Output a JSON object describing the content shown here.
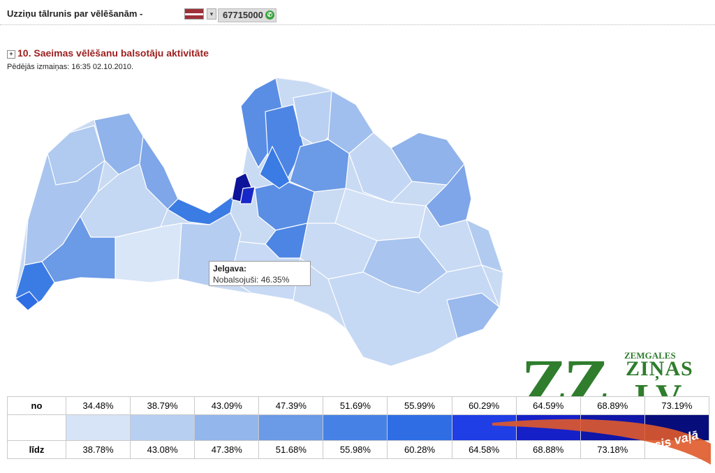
{
  "header": {
    "title": "Uzziņu tālrunis par vēlēšanām -",
    "flag_dropdown": "▾",
    "phone": "67715000",
    "phone_icon": "phone-icon"
  },
  "section": {
    "expand_icon": "+",
    "title": "10. Saeimas vēlēšanu balsotāju aktivitāte",
    "updated": "Pēdējās izmaiņas: 16:35 02.10.2010."
  },
  "tooltip": {
    "title": "Jelgava:",
    "value": "Nobalsojuši: 46.35%"
  },
  "logo": {
    "zz": "ZZ",
    "zemgales": "ZEMGALES",
    "zinas": "ZIŅAS",
    "lv": ".LV",
    "acis": "acis vaļā"
  },
  "legend": {
    "label_from": "no",
    "label_to": "līdz",
    "from": [
      "34.48%",
      "38.79%",
      "43.09%",
      "47.39%",
      "51.69%",
      "55.99%",
      "60.29%",
      "64.59%",
      "68.89%",
      "73.19%"
    ],
    "to": [
      "38.78%",
      "43.08%",
      "47.38%",
      "51.68%",
      "55.98%",
      "60.28%",
      "64.58%",
      "68.88%",
      "73.18%",
      ""
    ],
    "colors": [
      "#d7e4f7",
      "#b7cff1",
      "#93b6ec",
      "#6b9ae6",
      "#4682e6",
      "#2e6de4",
      "#1f3ee6",
      "#1620c8",
      "#0f16a8",
      "#070d7a"
    ]
  }
}
